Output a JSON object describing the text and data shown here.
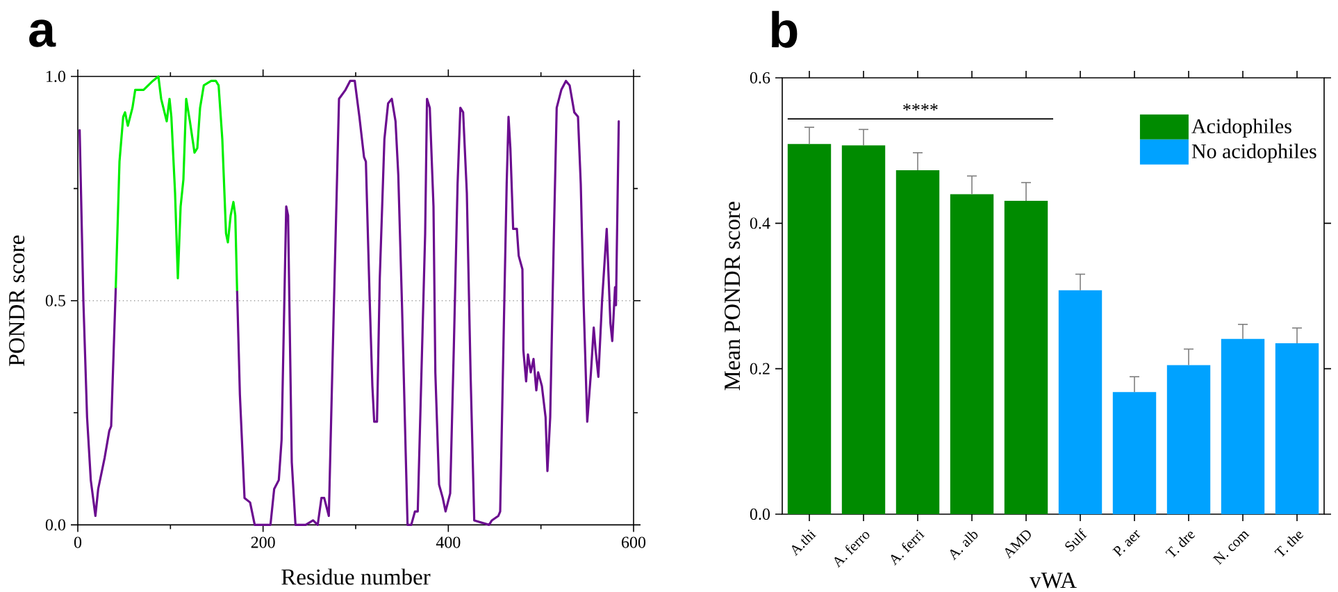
{
  "chart_data": [
    {
      "type": "line",
      "title": "a",
      "xlabel": "Residue number",
      "ylabel": "PONDR score",
      "xlim": [
        0,
        600
      ],
      "ylim": [
        0,
        1
      ],
      "xticks": [
        0,
        {
          "value": 100,
          "label": null
        },
        200,
        {
          "value": 300,
          "label": null
        },
        400,
        {
          "value": 500,
          "label": null
        },
        600
      ],
      "yticks": [
        {
          "value": 0,
          "label": "0.0"
        },
        {
          "value": 0.25,
          "label": null
        },
        {
          "value": 0.5,
          "label": "0.5"
        },
        {
          "value": 0.75,
          "label": null
        },
        {
          "value": 1,
          "label": "1.0"
        }
      ],
      "marker": "none",
      "line_style": "solid",
      "ref_lines": [
        {
          "axis": "y",
          "value": 0.5,
          "color": "#a0a0a0",
          "line_style": "dotted"
        }
      ],
      "series": [
        {
          "color": "#6b0d8f",
          "x": [
            2,
            6,
            10,
            14,
            19,
            22,
            29,
            34,
            36,
            41
          ],
          "values": [
            0.88,
            0.5,
            0.24,
            0.1,
            0.02,
            0.08,
            0.15,
            0.21,
            0.22,
            0.53
          ]
        },
        {
          "color": "#00ee00",
          "x": [
            41,
            45,
            49,
            51,
            54,
            59,
            62,
            71,
            76,
            81,
            87,
            90,
            96,
            99,
            101,
            105,
            108,
            111,
            114,
            117,
            121,
            126,
            129,
            132,
            136,
            144,
            149,
            152,
            156,
            160,
            162,
            165,
            168,
            170,
            172
          ],
          "values": [
            0.53,
            0.81,
            0.91,
            0.92,
            0.89,
            0.93,
            0.97,
            0.97,
            0.98,
            0.99,
            1.0,
            0.95,
            0.9,
            0.95,
            0.91,
            0.74,
            0.55,
            0.71,
            0.77,
            0.95,
            0.9,
            0.83,
            0.84,
            0.93,
            0.98,
            0.99,
            0.99,
            0.98,
            0.86,
            0.65,
            0.63,
            0.69,
            0.72,
            0.69,
            0.52
          ]
        },
        {
          "color": "#6b0d8f",
          "x": [
            172,
            175,
            180,
            186,
            191,
            208,
            212,
            217,
            220,
            225,
            227,
            231,
            235,
            246,
            254,
            259,
            263,
            266,
            271,
            276,
            282,
            289,
            294,
            299,
            304,
            309,
            311,
            315,
            318,
            320,
            323,
            326,
            331,
            335,
            339,
            343,
            346,
            350,
            354,
            356,
            360,
            364,
            367,
            371,
            375,
            377,
            380,
            384,
            386,
            390,
            394,
            397,
            402,
            406,
            410,
            413,
            416,
            420,
            424,
            428,
            444,
            447,
            454,
            456,
            460,
            463,
            465,
            467,
            470,
            474,
            476,
            480,
            481,
            484,
            486,
            489,
            492,
            495,
            497,
            501,
            505,
            507,
            510,
            514,
            517,
            522,
            527,
            531,
            536,
            540,
            543,
            546,
            550,
            554,
            557,
            559,
            562,
            566,
            571,
            575,
            577,
            580,
            581,
            584
          ],
          "values": [
            0.52,
            0.29,
            0.06,
            0.05,
            0.0,
            0.0,
            0.08,
            0.1,
            0.19,
            0.71,
            0.69,
            0.14,
            0.0,
            0.0,
            0.01,
            0.0,
            0.06,
            0.06,
            0.02,
            0.45,
            0.95,
            0.97,
            0.99,
            0.99,
            0.91,
            0.82,
            0.81,
            0.51,
            0.31,
            0.23,
            0.23,
            0.55,
            0.86,
            0.94,
            0.95,
            0.9,
            0.78,
            0.49,
            0.16,
            0.0,
            0.0,
            0.03,
            0.03,
            0.34,
            0.65,
            0.95,
            0.93,
            0.71,
            0.34,
            0.09,
            0.06,
            0.03,
            0.07,
            0.4,
            0.76,
            0.93,
            0.92,
            0.74,
            0.34,
            0.01,
            0.0,
            0.01,
            0.02,
            0.03,
            0.45,
            0.76,
            0.91,
            0.84,
            0.66,
            0.66,
            0.6,
            0.57,
            0.39,
            0.32,
            0.38,
            0.34,
            0.37,
            0.3,
            0.34,
            0.31,
            0.24,
            0.12,
            0.24,
            0.65,
            0.93,
            0.97,
            0.99,
            0.98,
            0.92,
            0.91,
            0.76,
            0.5,
            0.23,
            0.34,
            0.44,
            0.39,
            0.33,
            0.5,
            0.66,
            0.45,
            0.41,
            0.53,
            0.49,
            0.9
          ]
        }
      ]
    },
    {
      "type": "bar",
      "title": "b",
      "xlabel": "vWA",
      "ylabel": "Mean PONDR score",
      "categories": [
        "A.thi",
        "A. ferro",
        "A. ferri",
        "A. alb",
        "AMD",
        "Sulf",
        "P. aer",
        "T. dre",
        "N. com",
        "T. the"
      ],
      "ylim": [
        0,
        0.6
      ],
      "yticks": [
        {
          "value": 0,
          "label": "0.0"
        },
        {
          "value": 0.2,
          "label": "0.2"
        },
        {
          "value": 0.4,
          "label": "0.4"
        },
        {
          "value": 0.6,
          "label": "0.6"
        }
      ],
      "legend": "top right",
      "annotations": [
        "****"
      ],
      "series": [
        {
          "name": "Acidophiles",
          "color": "#008b00",
          "values": [
            0.509,
            0.507,
            0.473,
            0.44,
            0.431,
            null,
            null,
            null,
            null,
            null
          ],
          "errors": [
            [
              0.509,
              0.532
            ],
            [
              0.507,
              0.529
            ],
            [
              0.473,
              0.497
            ],
            [
              0.44,
              0.465
            ],
            [
              0.431,
              0.456
            ],
            null,
            null,
            null,
            null,
            null
          ]
        },
        {
          "name": "No acidophiles",
          "color": "#00a2ff",
          "values": [
            null,
            null,
            null,
            null,
            null,
            0.308,
            0.168,
            0.205,
            0.241,
            0.235
          ],
          "errors": [
            null,
            null,
            null,
            null,
            null,
            [
              0.308,
              0.33
            ],
            [
              0.168,
              0.189
            ],
            [
              0.205,
              0.227
            ],
            [
              0.241,
              0.261
            ],
            [
              0.235,
              0.256
            ]
          ]
        }
      ]
    }
  ]
}
